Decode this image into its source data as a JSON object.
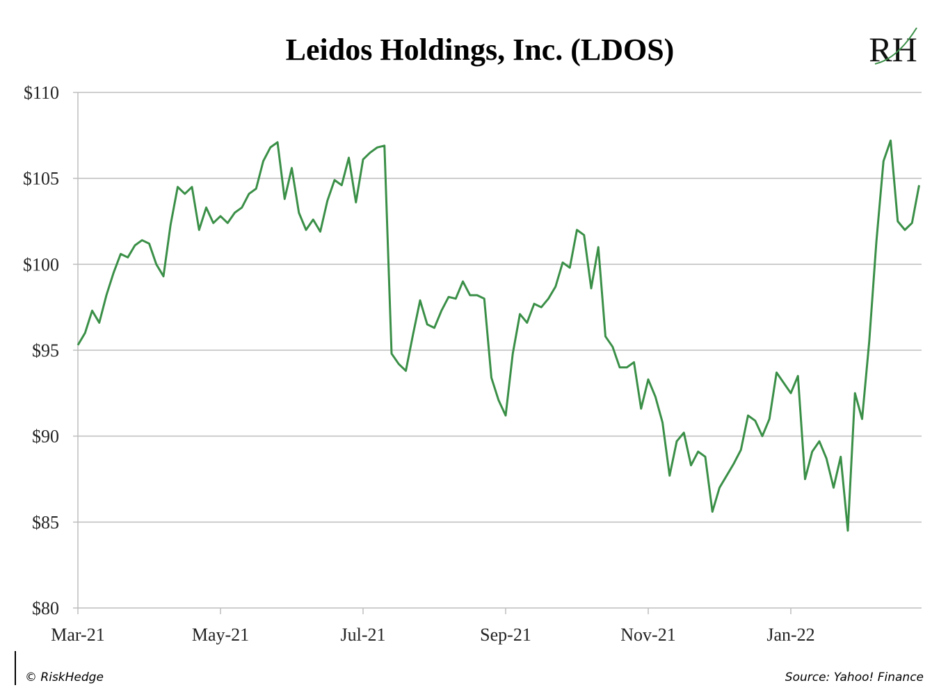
{
  "chart_data": {
    "type": "line",
    "title": "Leidos Holdings, Inc. (LDOS)",
    "logo": "RH",
    "credit": "© RiskHedge",
    "source": "Source: Yahoo! Finance",
    "categories": [
      "Mar-21",
      null,
      null,
      null,
      null,
      null,
      null,
      null,
      null,
      null,
      null,
      null,
      null,
      null,
      null,
      null,
      null,
      null,
      null,
      null,
      "May-21",
      null,
      null,
      null,
      null,
      null,
      null,
      null,
      null,
      null,
      null,
      null,
      null,
      null,
      null,
      null,
      null,
      null,
      null,
      null,
      "Jul-21",
      null,
      null,
      null,
      null,
      null,
      null,
      null,
      null,
      null,
      null,
      null,
      null,
      null,
      null,
      null,
      null,
      null,
      null,
      null,
      "Sep-21",
      null,
      null,
      null,
      null,
      null,
      null,
      null,
      null,
      null,
      null,
      null,
      null,
      null,
      null,
      null,
      null,
      null,
      null,
      null,
      "Nov-21",
      null,
      null,
      null,
      null,
      null,
      null,
      null,
      null,
      null,
      null,
      null,
      null,
      null,
      null,
      null,
      null,
      null,
      null,
      null,
      "Jan-22",
      null,
      null,
      null,
      null,
      null,
      null,
      null,
      null,
      null,
      null,
      null,
      null,
      null,
      null,
      null,
      null,
      null,
      null
    ],
    "series": [
      {
        "name": "LDOS",
        "color": "#3a8f47",
        "values": [
          95.3,
          96.0,
          97.3,
          96.6,
          98.2,
          99.5,
          100.6,
          100.4,
          101.1,
          101.4,
          101.2,
          100,
          99.3,
          102.3,
          104.5,
          104.1,
          104.5,
          102,
          103.3,
          102.4,
          102.8,
          102.4,
          103,
          103.3,
          104.1,
          104.4,
          106,
          106.8,
          107.1,
          103.8,
          105.6,
          103,
          102,
          102.6,
          101.9,
          103.7,
          104.9,
          104.6,
          106.2,
          103.6,
          106.1,
          106.5,
          106.8,
          106.9,
          94.8,
          94.2,
          93.8,
          95.9,
          97.9,
          96.5,
          96.3,
          97.3,
          98.1,
          98,
          99,
          98.2,
          98.2,
          98,
          93.4,
          92.1,
          91.2,
          94.8,
          97.1,
          96.6,
          97.7,
          97.5,
          98,
          98.7,
          100.1,
          99.8,
          102,
          101.7,
          98.6,
          101,
          95.8,
          95.2,
          94,
          94,
          94.3,
          91.6,
          93.3,
          92.3,
          90.8,
          87.7,
          89.7,
          90.2,
          88.3,
          89.1,
          88.8,
          85.6,
          87,
          87.7,
          88.4,
          89.2,
          91.2,
          90.9,
          90,
          91,
          93.7,
          93.1,
          92.5,
          93.5,
          87.5,
          89.1,
          89.7,
          88.7,
          87,
          88.8,
          84.5,
          92.5,
          91,
          95.5,
          101.3,
          106,
          107.2,
          102.5,
          102,
          102.4,
          104.6
        ]
      }
    ],
    "ylim": [
      80,
      110
    ],
    "yticks": [
      {
        "value": 80,
        "label": "$80"
      },
      {
        "value": 85,
        "label": "$85"
      },
      {
        "value": 90,
        "label": "$90"
      },
      {
        "value": 95,
        "label": "$95"
      },
      {
        "value": 100,
        "label": "$100"
      },
      {
        "value": 105,
        "label": "$105"
      },
      {
        "value": 110,
        "label": "$110"
      }
    ],
    "grid": true
  }
}
